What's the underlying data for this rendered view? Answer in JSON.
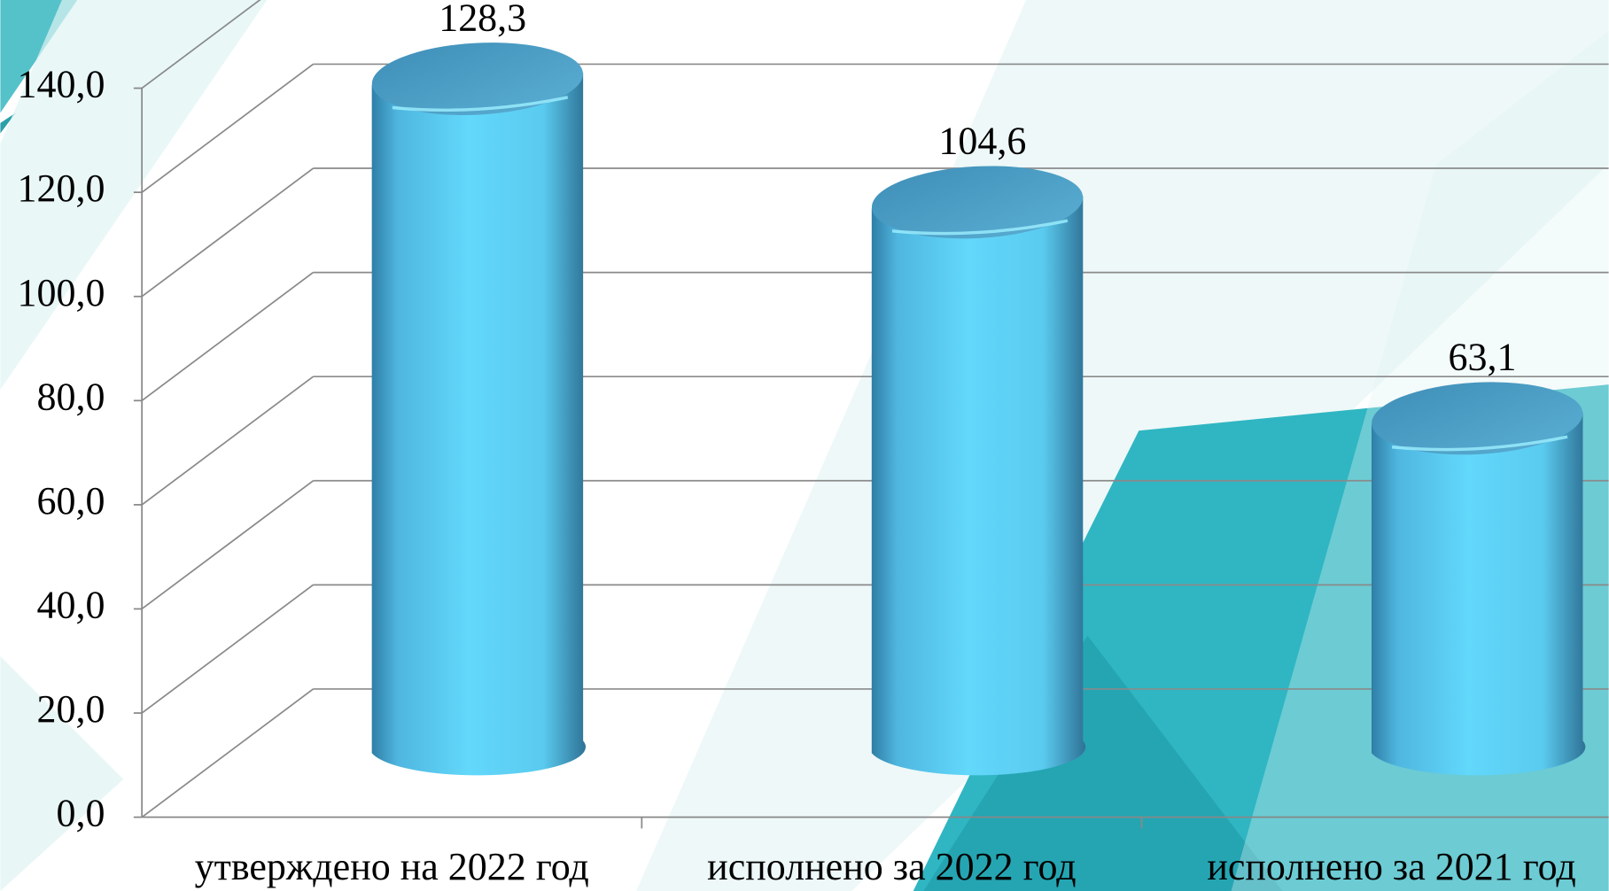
{
  "chart_data": {
    "type": "bar",
    "categories": [
      "утверждено на 2022 год",
      "исполнено за 2022 год",
      "исполнено за 2021 год"
    ],
    "values": [
      128.3,
      104.6,
      63.1
    ],
    "value_labels": [
      "128,3",
      "104,6",
      "63,1"
    ],
    "color": "#5ad2f7",
    "ylim": [
      0,
      140
    ],
    "yticks": [
      {
        "value": 0,
        "label": "0,0"
      },
      {
        "value": 20,
        "label": "20,0"
      },
      {
        "value": 40,
        "label": "40,0"
      },
      {
        "value": 60,
        "label": "60,0"
      },
      {
        "value": 80,
        "label": "80,0"
      },
      {
        "value": 100,
        "label": "100,0"
      },
      {
        "value": 120,
        "label": "120,0"
      },
      {
        "value": 140,
        "label": "140,0"
      }
    ],
    "grid": true
  }
}
